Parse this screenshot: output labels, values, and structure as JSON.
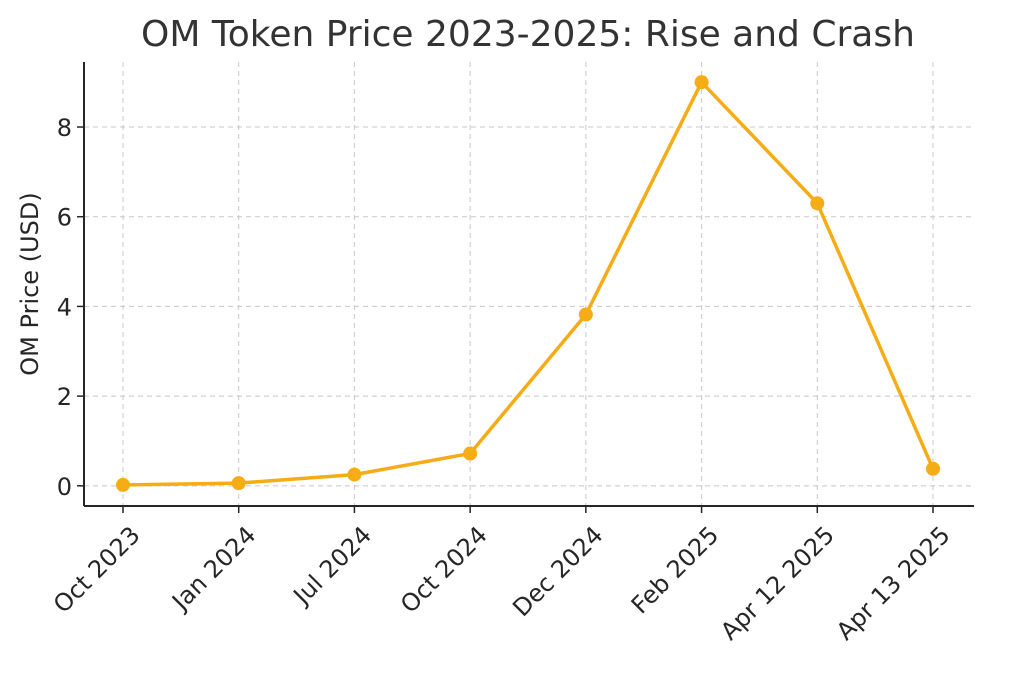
{
  "chart_data": {
    "type": "line",
    "title": "OM Token Price 2023-2025: Rise and Crash",
    "xlabel": "",
    "ylabel": "OM Price (USD)",
    "categories": [
      "Oct 2023",
      "Jan 2024",
      "Jul 2024",
      "Oct 2024",
      "Dec 2024",
      "Feb 2025",
      "Apr 12 2025",
      "Apr 13 2025"
    ],
    "series": [
      {
        "values": [
          0.02,
          0.06,
          0.25,
          0.72,
          3.82,
          9.0,
          6.3,
          0.38
        ]
      }
    ],
    "yticks": [
      0,
      2,
      4,
      6,
      8
    ],
    "ytick_labels": [
      "0",
      "2",
      "4",
      "6",
      "8"
    ],
    "ylim": [
      -0.45,
      9.45
    ],
    "grid": true,
    "legend": "none",
    "line_color": "#f5ac15"
  }
}
